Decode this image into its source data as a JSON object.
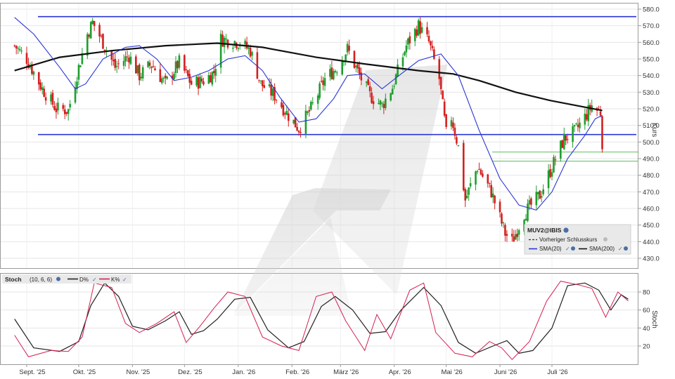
{
  "chart_data": [
    {
      "type": "candlestick",
      "symbol": "MUV2@IBIS",
      "ylabel": "Kurs",
      "ylim": [
        425,
        585
      ],
      "yticks": [
        430,
        440,
        450,
        460,
        470,
        480,
        490,
        500,
        510,
        520,
        530,
        540,
        550,
        560,
        570,
        580
      ],
      "x_range": [
        "2025-08-25",
        "2026-07-30"
      ],
      "legend": {
        "title": "MUV2@IBIS",
        "items": [
          {
            "label": "Vorheriger Schlusskurs",
            "style": "dashed",
            "color": "#333333"
          },
          {
            "label": "SMA(20)",
            "color": "#2a35d6"
          },
          {
            "label": "SMA(200)",
            "color": "#111111"
          }
        ]
      },
      "colors": {
        "up": "#1e9e2e",
        "down": "#d42020",
        "sma20": "#2a35d6",
        "sma200": "#111111",
        "hlines": "#2a35d6",
        "support": "#6fc46f"
      },
      "horizontal_lines": [
        575.5,
        504.5
      ],
      "support_lines": [
        494,
        488.5
      ],
      "close_series": [
        [
          "2025-08-25",
          558
        ],
        [
          "2025-09-01",
          550
        ],
        [
          "2025-09-10",
          532
        ],
        [
          "2025-09-18",
          520
        ],
        [
          "2025-09-25",
          519
        ],
        [
          "2025-10-01",
          545
        ],
        [
          "2025-10-06",
          565
        ],
        [
          "2025-10-09",
          572
        ],
        [
          "2025-10-15",
          560
        ],
        [
          "2025-10-22",
          545
        ],
        [
          "2025-10-30",
          552
        ],
        [
          "2025-11-05",
          540
        ],
        [
          "2025-11-12",
          547
        ],
        [
          "2025-11-20",
          535
        ],
        [
          "2025-11-28",
          548
        ],
        [
          "2025-12-05",
          535
        ],
        [
          "2025-12-12",
          537
        ],
        [
          "2025-12-18",
          542
        ],
        [
          "2025-12-22",
          562
        ],
        [
          "2026-01-02",
          560
        ],
        [
          "2026-01-08",
          555
        ],
        [
          "2026-01-14",
          535
        ],
        [
          "2026-01-22",
          528
        ],
        [
          "2026-01-30",
          516
        ],
        [
          "2026-02-05",
          508
        ],
        [
          "2026-02-12",
          520
        ],
        [
          "2026-02-20",
          538
        ],
        [
          "2026-02-27",
          545
        ],
        [
          "2026-03-05",
          556
        ],
        [
          "2026-03-12",
          540
        ],
        [
          "2026-03-18",
          528
        ],
        [
          "2026-03-25",
          522
        ],
        [
          "2026-03-31",
          533
        ],
        [
          "2026-04-08",
          558
        ],
        [
          "2026-04-15",
          570
        ],
        [
          "2026-04-21",
          560
        ],
        [
          "2026-04-27",
          538
        ],
        [
          "2026-05-01",
          505
        ],
        [
          "2026-05-04",
          515
        ],
        [
          "2026-05-08",
          497
        ],
        [
          "2026-05-12",
          465
        ],
        [
          "2026-05-19",
          485
        ],
        [
          "2026-05-27",
          470
        ],
        [
          "2026-06-04",
          445
        ],
        [
          "2026-06-08",
          440
        ],
        [
          "2026-06-15",
          457
        ],
        [
          "2026-06-24",
          468
        ],
        [
          "2026-07-01",
          485
        ],
        [
          "2026-07-08",
          502
        ],
        [
          "2026-07-14",
          506
        ],
        [
          "2026-07-20",
          515
        ],
        [
          "2026-07-24",
          522
        ],
        [
          "2026-07-27",
          519
        ],
        [
          "2026-07-29",
          518
        ],
        [
          "2026-07-30",
          500
        ]
      ],
      "sma20": [
        [
          "2025-08-25",
          575
        ],
        [
          "2025-09-05",
          565
        ],
        [
          "2025-09-20",
          545
        ],
        [
          "2025-09-29",
          532
        ],
        [
          "2025-10-05",
          535
        ],
        [
          "2025-10-15",
          550
        ],
        [
          "2025-10-28",
          557
        ],
        [
          "2025-11-05",
          558
        ],
        [
          "2025-11-15",
          550
        ],
        [
          "2025-11-25",
          537
        ],
        [
          "2025-12-05",
          539
        ],
        [
          "2025-12-15",
          543
        ],
        [
          "2025-12-26",
          550
        ],
        [
          "2026-01-05",
          552
        ],
        [
          "2026-01-15",
          543
        ],
        [
          "2026-01-25",
          527
        ],
        [
          "2026-02-05",
          512
        ],
        [
          "2026-02-15",
          514
        ],
        [
          "2026-02-25",
          526
        ],
        [
          "2026-03-05",
          540
        ],
        [
          "2026-03-15",
          541
        ],
        [
          "2026-03-25",
          532
        ],
        [
          "2026-04-05",
          541
        ],
        [
          "2026-04-15",
          549
        ],
        [
          "2026-04-28",
          553
        ],
        [
          "2026-05-08",
          540
        ],
        [
          "2026-05-20",
          507
        ],
        [
          "2026-06-01",
          478
        ],
        [
          "2026-06-12",
          462
        ],
        [
          "2026-06-22",
          459
        ],
        [
          "2026-07-01",
          470
        ],
        [
          "2026-07-10",
          490
        ],
        [
          "2026-07-20",
          504
        ],
        [
          "2026-07-26",
          514
        ],
        [
          "2026-07-30",
          516
        ]
      ],
      "sma200": [
        [
          "2025-08-25",
          543
        ],
        [
          "2025-09-20",
          551
        ],
        [
          "2025-10-20",
          555
        ],
        [
          "2025-11-20",
          558
        ],
        [
          "2025-12-20",
          559.5
        ],
        [
          "2026-01-15",
          557
        ],
        [
          "2026-02-15",
          551
        ],
        [
          "2026-03-15",
          547
        ],
        [
          "2026-04-15",
          543
        ],
        [
          "2026-05-05",
          541
        ],
        [
          "2026-05-20",
          537
        ],
        [
          "2026-06-10",
          530
        ],
        [
          "2026-06-30",
          525
        ],
        [
          "2026-07-15",
          522
        ],
        [
          "2026-07-30",
          519
        ]
      ]
    },
    {
      "type": "line",
      "indicator": "Stoch",
      "params": "(10, 6, 6)",
      "ylabel": "Stoch",
      "ylim": [
        0,
        100
      ],
      "yticks": [
        20,
        40,
        60,
        80
      ],
      "series": [
        {
          "name": "D%",
          "color": "#222222",
          "values": [
            [
              "2025-08-25",
              50
            ],
            [
              "2025-09-05",
              18
            ],
            [
              "2025-09-20",
              14
            ],
            [
              "2025-10-01",
              25
            ],
            [
              "2025-10-08",
              65
            ],
            [
              "2025-10-16",
              90
            ],
            [
              "2025-10-24",
              75
            ],
            [
              "2025-11-01",
              42
            ],
            [
              "2025-11-10",
              38
            ],
            [
              "2025-11-20",
              48
            ],
            [
              "2025-11-28",
              58
            ],
            [
              "2025-12-05",
              33
            ],
            [
              "2025-12-12",
              37
            ],
            [
              "2025-12-20",
              50
            ],
            [
              "2025-12-30",
              72
            ],
            [
              "2026-01-08",
              74
            ],
            [
              "2026-01-18",
              38
            ],
            [
              "2026-01-30",
              18
            ],
            [
              "2026-02-08",
              25
            ],
            [
              "2026-02-18",
              64
            ],
            [
              "2026-02-26",
              75
            ],
            [
              "2026-03-08",
              60
            ],
            [
              "2026-03-18",
              34
            ],
            [
              "2026-03-27",
              36
            ],
            [
              "2026-04-05",
              60
            ],
            [
              "2026-04-18",
              85
            ],
            [
              "2026-04-28",
              65
            ],
            [
              "2026-05-08",
              24
            ],
            [
              "2026-05-18",
              12
            ],
            [
              "2026-05-28",
              20
            ],
            [
              "2026-06-05",
              26
            ],
            [
              "2026-06-12",
              12
            ],
            [
              "2026-06-20",
              15
            ],
            [
              "2026-07-01",
              40
            ],
            [
              "2026-07-10",
              87
            ],
            [
              "2026-07-20",
              90
            ],
            [
              "2026-07-28",
              82
            ],
            [
              "2026-08-04",
              60
            ],
            [
              "2026-08-10",
              77
            ],
            [
              "2026-08-14",
              72
            ]
          ]
        },
        {
          "name": "K%",
          "color": "#d42050",
          "values": [
            [
              "2025-08-25",
              32
            ],
            [
              "2025-09-02",
              8
            ],
            [
              "2025-09-15",
              15
            ],
            [
              "2025-09-25",
              14
            ],
            [
              "2025-10-03",
              30
            ],
            [
              "2025-10-10",
              90
            ],
            [
              "2025-10-20",
              85
            ],
            [
              "2025-10-28",
              45
            ],
            [
              "2025-11-05",
              35
            ],
            [
              "2025-11-15",
              45
            ],
            [
              "2025-11-25",
              58
            ],
            [
              "2025-12-02",
              24
            ],
            [
              "2025-12-10",
              42
            ],
            [
              "2025-12-18",
              62
            ],
            [
              "2025-12-26",
              80
            ],
            [
              "2026-01-05",
              75
            ],
            [
              "2026-01-15",
              30
            ],
            [
              "2026-01-26",
              20
            ],
            [
              "2026-02-05",
              15
            ],
            [
              "2026-02-15",
              75
            ],
            [
              "2026-02-24",
              80
            ],
            [
              "2026-03-04",
              48
            ],
            [
              "2026-03-15",
              15
            ],
            [
              "2026-03-22",
              55
            ],
            [
              "2026-03-30",
              28
            ],
            [
              "2026-04-10",
              82
            ],
            [
              "2026-04-18",
              90
            ],
            [
              "2026-04-25",
              35
            ],
            [
              "2026-05-06",
              12
            ],
            [
              "2026-05-16",
              8
            ],
            [
              "2026-05-26",
              25
            ],
            [
              "2026-06-02",
              18
            ],
            [
              "2026-06-08",
              5
            ],
            [
              "2026-06-18",
              25
            ],
            [
              "2026-06-28",
              70
            ],
            [
              "2026-07-06",
              92
            ],
            [
              "2026-07-16",
              88
            ],
            [
              "2026-07-24",
              84
            ],
            [
              "2026-08-01",
              52
            ],
            [
              "2026-08-08",
              80
            ],
            [
              "2026-08-14",
              70
            ]
          ]
        }
      ]
    }
  ],
  "x_ticks": [
    {
      "label": "Sept. '25",
      "date": "2025-09-01"
    },
    {
      "label": "Okt. '25",
      "date": "2025-10-01"
    },
    {
      "label": "Nov. '25",
      "date": "2025-11-01"
    },
    {
      "label": "Dez. '25",
      "date": "2025-12-01"
    },
    {
      "label": "Jan. '26",
      "date": "2026-01-01"
    },
    {
      "label": "Feb. '26",
      "date": "2026-02-01"
    },
    {
      "label": "März '26",
      "date": "2026-03-01"
    },
    {
      "label": "Apr. '26",
      "date": "2026-04-01"
    },
    {
      "label": "Mai '26",
      "date": "2026-05-01"
    },
    {
      "label": "Juni '26",
      "date": "2026-06-01"
    },
    {
      "label": "Juli '26",
      "date": "2026-07-01"
    }
  ],
  "legend_icon": "settings-icon",
  "stoch_legend": {
    "name": "Stoch",
    "params": "(10, 6, 6)",
    "d_label": "D%",
    "k_label": "K%"
  }
}
